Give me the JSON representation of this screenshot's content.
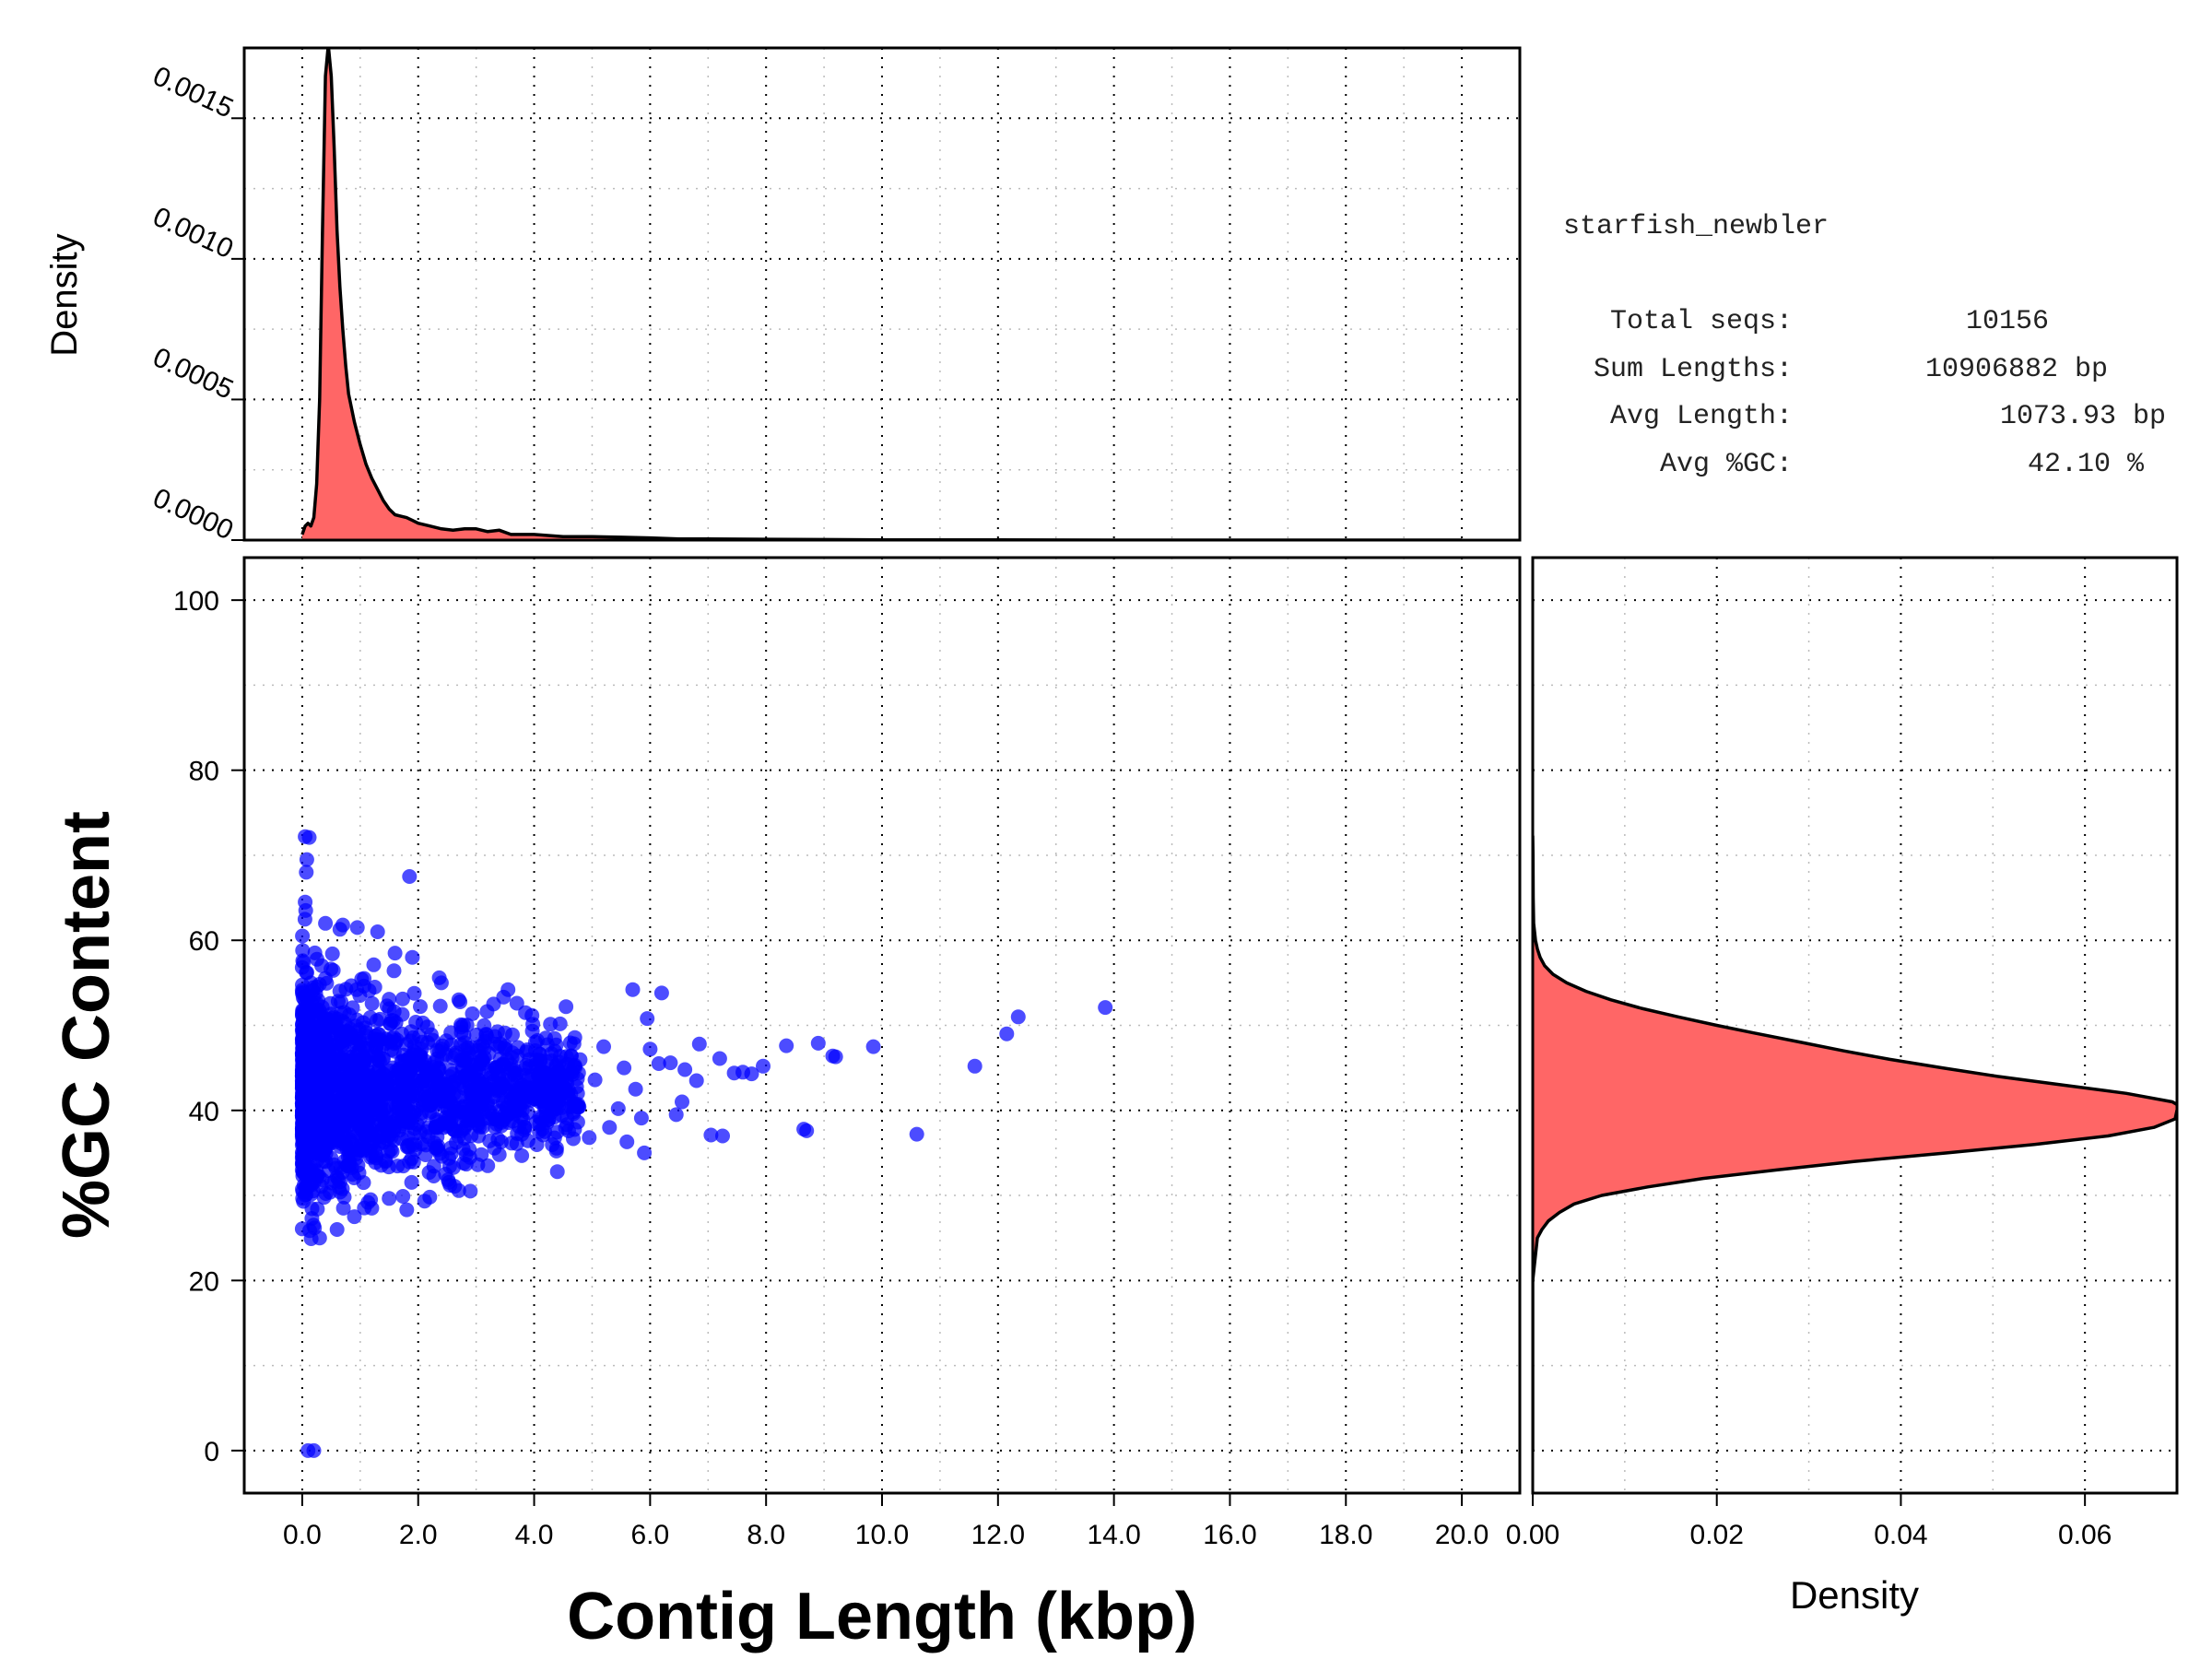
{
  "stats": {
    "assembly_name": "starfish_newbler",
    "rows": [
      {
        "label": "Total seqs:",
        "value": "10156"
      },
      {
        "label": "Sum Lengths:",
        "value": "10906882 bp"
      },
      {
        "label": "Avg Length:",
        "value": "1073.93 bp"
      },
      {
        "label": "Avg %GC:",
        "value": "42.10 %"
      }
    ]
  },
  "colors": {
    "points": "#0000ff",
    "density_fill": "#ff6666",
    "line": "#000000"
  },
  "chart_data": [
    {
      "id": "scatter",
      "type": "scatter",
      "xlabel": "Contig Length (kbp)",
      "ylabel": "%GC Content",
      "xlim": [
        -1.0,
        21.0
      ],
      "ylim": [
        -5,
        105
      ],
      "xticks": [
        0,
        2,
        4,
        6,
        8,
        10,
        12,
        14,
        16,
        18,
        20
      ],
      "xtick_labels": [
        "0.0",
        "2.0",
        "4.0",
        "6.0",
        "8.0",
        "10.0",
        "12.0",
        "14.0",
        "16.0",
        "18.0",
        "20.0"
      ],
      "yticks": [
        0,
        20,
        40,
        60,
        80,
        100
      ],
      "ytick_labels": [
        "0",
        "20",
        "40",
        "60",
        "80",
        "100"
      ],
      "grid": true,
      "sample_points": [
        [
          0.05,
          72.2
        ],
        [
          0.12,
          72.1
        ],
        [
          0.08,
          69.5
        ],
        [
          0.07,
          68.0
        ],
        [
          1.85,
          67.5
        ],
        [
          0.06,
          63.5
        ],
        [
          0.05,
          64.5
        ],
        [
          0.1,
          0.0
        ],
        [
          0.2,
          0.0
        ],
        [
          13.85,
          52.1
        ],
        [
          12.35,
          51.0
        ],
        [
          12.15,
          49.0
        ],
        [
          11.6,
          45.2
        ],
        [
          10.6,
          37.2
        ],
        [
          9.85,
          47.5
        ],
        [
          9.2,
          46.3
        ],
        [
          9.15,
          46.4
        ],
        [
          8.9,
          47.9
        ],
        [
          8.7,
          37.6
        ],
        [
          8.65,
          37.8
        ],
        [
          8.35,
          47.6
        ],
        [
          7.95,
          45.2
        ],
        [
          7.75,
          44.3
        ],
        [
          7.6,
          44.5
        ],
        [
          7.45,
          44.4
        ],
        [
          7.2,
          46.1
        ],
        [
          7.25,
          37.0
        ],
        [
          7.05,
          37.1
        ],
        [
          6.85,
          47.8
        ],
        [
          6.8,
          43.5
        ],
        [
          6.55,
          41.0
        ],
        [
          6.6,
          44.8
        ],
        [
          6.45,
          39.5
        ],
        [
          6.35,
          45.6
        ],
        [
          6.2,
          53.8
        ],
        [
          6.15,
          45.5
        ],
        [
          5.95,
          50.8
        ],
        [
          6.0,
          47.2
        ],
        [
          5.85,
          39.1
        ],
        [
          5.75,
          42.5
        ],
        [
          5.9,
          35.0
        ],
        [
          5.7,
          54.2
        ],
        [
          5.6,
          36.3
        ],
        [
          5.55,
          45.0
        ],
        [
          5.45,
          40.2
        ],
        [
          5.3,
          38.0
        ],
        [
          5.2,
          47.5
        ],
        [
          5.05,
          43.6
        ],
        [
          4.95,
          36.8
        ],
        [
          4.75,
          42.0
        ],
        [
          4.55,
          52.2
        ],
        [
          4.4,
          32.8
        ],
        [
          4.2,
          48.5
        ],
        [
          4.3,
          39.8
        ],
        [
          4.1,
          44.5
        ],
        [
          3.95,
          41.2
        ],
        [
          3.85,
          51.5
        ],
        [
          3.55,
          54.2
        ],
        [
          3.7,
          36.1
        ],
        [
          3.5,
          47.2
        ],
        [
          3.3,
          52.5
        ],
        [
          3.2,
          33.5
        ],
        [
          3.05,
          45.0
        ],
        [
          2.9,
          30.5
        ],
        [
          2.7,
          53.0
        ],
        [
          2.55,
          31.2
        ],
        [
          2.4,
          55.0
        ],
        [
          2.2,
          29.8
        ],
        [
          1.9,
          58.0
        ],
        [
          1.6,
          58.5
        ],
        [
          1.3,
          61.0
        ],
        [
          0.95,
          61.5
        ],
        [
          0.7,
          61.8
        ],
        [
          0.4,
          62.0
        ],
        [
          0.3,
          25.0
        ],
        [
          0.6,
          26.0
        ],
        [
          0.9,
          27.5
        ],
        [
          1.2,
          28.5
        ],
        [
          0.02,
          29.3
        ],
        [
          0.15,
          55.0
        ]
      ],
      "dense_cloud": {
        "x_range": [
          0.0,
          4.8
        ],
        "y_center": 42.1,
        "note": "bulk of 10156 contigs"
      }
    },
    {
      "id": "length_density",
      "type": "area",
      "ylabel": "Density",
      "ylim": [
        0.0,
        0.00175
      ],
      "yticks": [
        0.0,
        0.0005,
        0.001,
        0.0015
      ],
      "ytick_labels": [
        "0.0000",
        "0.0005",
        "0.0010",
        "0.0015"
      ],
      "x": [
        0.0,
        0.05,
        0.1,
        0.15,
        0.2,
        0.25,
        0.3,
        0.35,
        0.4,
        0.45,
        0.5,
        0.55,
        0.6,
        0.65,
        0.7,
        0.75,
        0.8,
        0.9,
        1.0,
        1.1,
        1.2,
        1.3,
        1.4,
        1.5,
        1.6,
        1.7,
        1.8,
        1.9,
        2.0,
        2.2,
        2.4,
        2.6,
        2.8,
        3.0,
        3.2,
        3.4,
        3.6,
        3.8,
        4.0,
        4.5,
        5.0,
        5.5,
        6.0,
        6.5,
        7.0,
        8.0,
        9.0,
        10.0,
        12.0,
        14.0,
        16.0,
        18.0,
        20.0
      ],
      "y": [
        2e-05,
        5e-05,
        6e-05,
        5e-05,
        8e-05,
        0.0002,
        0.0005,
        0.0011,
        0.00165,
        0.00176,
        0.00165,
        0.0014,
        0.0011,
        0.0009,
        0.00075,
        0.00062,
        0.00052,
        0.00042,
        0.00034,
        0.00027,
        0.00022,
        0.00018,
        0.00014,
        0.00011,
        9e-05,
        8.5e-05,
        8e-05,
        7e-05,
        6e-05,
        5e-05,
        4e-05,
        3.5e-05,
        4e-05,
        4e-05,
        3e-05,
        3.5e-05,
        2e-05,
        2e-05,
        2e-05,
        1.2e-05,
        1.2e-05,
        1e-05,
        8e-06,
        4e-06,
        4e-06,
        3e-06,
        2e-06,
        1e-06,
        1e-06,
        0.0,
        0.0,
        0.0,
        0.0
      ]
    },
    {
      "id": "gc_density",
      "type": "area",
      "xlabel": "Density",
      "xlim": [
        0.0,
        0.07
      ],
      "xticks": [
        0.0,
        0.02,
        0.04,
        0.06
      ],
      "xtick_labels": [
        "0.00",
        "0.02",
        "0.04",
        "0.06"
      ],
      "gc": [
        0,
        20,
        22,
        25,
        26,
        27,
        28,
        29,
        30,
        31,
        32,
        33,
        34,
        35,
        36,
        37,
        38,
        39,
        40,
        40.5,
        41,
        42,
        43,
        44,
        45,
        46,
        47,
        48,
        49,
        50,
        51,
        52,
        53,
        54,
        55,
        56,
        57,
        58,
        59,
        60,
        61,
        62,
        65,
        70,
        72.3
      ],
      "density": [
        0,
        0,
        0.0002,
        0.0005,
        0.001,
        0.0017,
        0.0029,
        0.0045,
        0.0075,
        0.0125,
        0.0185,
        0.0265,
        0.035,
        0.045,
        0.0545,
        0.0625,
        0.0675,
        0.0698,
        0.07,
        0.0703,
        0.0695,
        0.0645,
        0.0575,
        0.0505,
        0.0445,
        0.0388,
        0.0338,
        0.0292,
        0.0245,
        0.02,
        0.0158,
        0.0118,
        0.0085,
        0.0058,
        0.0037,
        0.0022,
        0.0013,
        0.0008,
        0.0005,
        0.0003,
        0.0002,
        0.0001,
        5e-05,
        3e-05,
        0.0
      ]
    }
  ]
}
